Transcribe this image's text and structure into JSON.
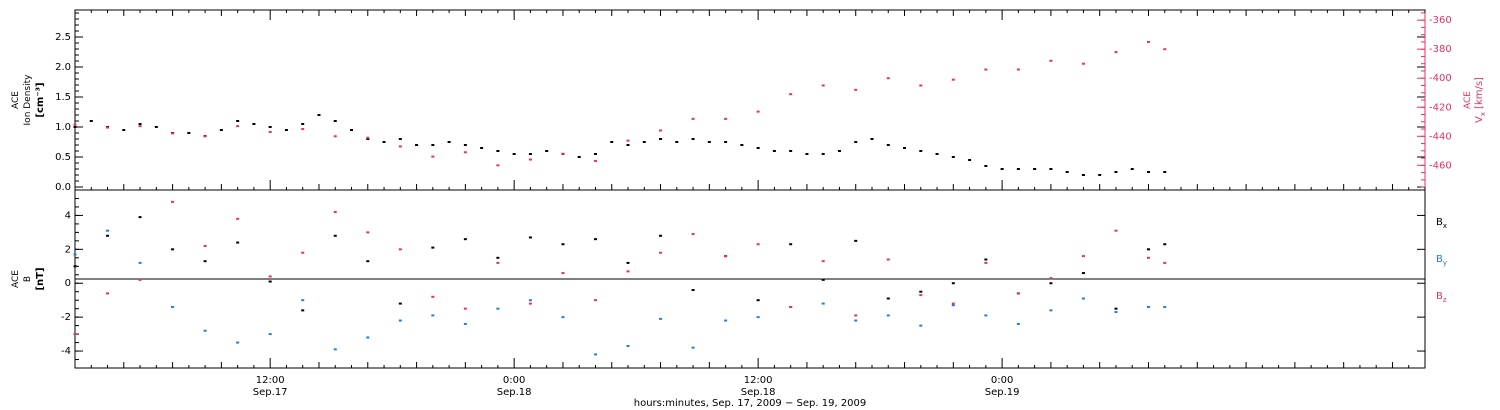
{
  "chart_data": [
    {
      "type": "scatter",
      "panel": "top",
      "ylabel_lines": [
        "ACE",
        "Ion Density",
        "[cm⁻³]"
      ],
      "y2label_lines": [
        "ACE",
        "V",
        "x",
        "[km/s]"
      ],
      "ylim": [
        -0.05,
        2.95
      ],
      "y2lim": [
        -477,
        -353
      ],
      "yticks": [
        0.0,
        0.5,
        1.0,
        1.5,
        2.0,
        2.5
      ],
      "ytick_labels": [
        "0.0",
        "0.5",
        "1.0",
        "1.5",
        "2.0",
        "2.5"
      ],
      "y2ticks": [
        -460,
        -440,
        -420,
        -400,
        -380,
        -360
      ],
      "y2tick_labels": [
        "-460",
        "-440",
        "-420",
        "-400",
        "-380",
        "-360"
      ],
      "series": [
        {
          "axis": "left",
          "color": "#000000",
          "x": [
            0,
            1,
            2,
            3,
            4,
            5,
            6,
            7,
            8,
            9,
            10,
            11,
            12,
            13,
            14,
            15,
            16,
            17,
            18,
            19,
            20,
            21,
            22,
            23,
            24,
            25,
            26,
            27,
            28,
            29,
            30,
            31,
            32,
            33,
            34,
            35,
            36,
            37,
            38,
            39,
            40,
            41,
            42,
            43,
            44,
            45,
            46,
            47,
            48,
            49,
            50,
            51,
            52,
            53,
            54,
            55,
            56,
            57,
            58,
            59,
            60,
            61,
            62,
            63,
            64,
            65,
            66,
            67
          ],
          "y": [
            1.0,
            1.1,
            1.0,
            0.95,
            1.05,
            1.0,
            0.9,
            0.9,
            0.85,
            0.95,
            1.1,
            1.05,
            1.0,
            0.95,
            1.05,
            1.2,
            1.1,
            0.95,
            0.8,
            0.75,
            0.8,
            0.7,
            0.7,
            0.75,
            0.7,
            0.65,
            0.6,
            0.55,
            0.55,
            0.6,
            0.55,
            0.5,
            0.55,
            0.75,
            0.7,
            0.75,
            0.8,
            0.75,
            0.8,
            0.75,
            0.75,
            0.7,
            0.65,
            0.6,
            0.6,
            0.55,
            0.55,
            0.6,
            0.75,
            0.8,
            0.7,
            0.65,
            0.6,
            0.55,
            0.5,
            0.45,
            0.35,
            0.3,
            0.3,
            0.3,
            0.3,
            0.25,
            0.2,
            0.2,
            0.25,
            0.3,
            0.25,
            0.25
          ]
        },
        {
          "axis": "right",
          "color": "#e8315f",
          "x": [
            0,
            2,
            4,
            6,
            8,
            10,
            12,
            14,
            16,
            18,
            20,
            22,
            24,
            26,
            28,
            30,
            32,
            34,
            36,
            38,
            40,
            42,
            44,
            46,
            48,
            50,
            52,
            54,
            56,
            58,
            60,
            62,
            64,
            66,
            67
          ],
          "y": [
            -432,
            -434,
            -433,
            -438,
            -440,
            -433,
            -437,
            -435,
            -440,
            -441,
            -447,
            -454,
            -451,
            -460,
            -456,
            -452,
            -457,
            -443,
            -436,
            -428,
            -428,
            -423,
            -411,
            -405,
            -408,
            -400,
            -405,
            -401,
            -394,
            -394,
            -388,
            -390,
            -382,
            -375,
            -380
          ]
        }
      ]
    },
    {
      "type": "scatter",
      "panel": "bottom",
      "ylabel_lines": [
        "ACE",
        "B",
        "[nT]"
      ],
      "ylim": [
        -5.0,
        5.5
      ],
      "yticks": [
        -4,
        -2,
        0,
        2,
        4
      ],
      "ytick_labels": [
        "-4",
        "-2",
        "0",
        "2",
        "4"
      ],
      "series": [
        {
          "name": "B",
          "subscript": "x",
          "color": "#000000",
          "x": [
            0,
            2,
            4,
            6,
            8,
            10,
            12,
            14,
            16,
            18,
            20,
            22,
            24,
            26,
            28,
            30,
            32,
            34,
            36,
            38,
            40,
            42,
            44,
            46,
            48,
            50,
            52,
            54,
            56,
            58,
            60,
            62,
            64,
            66,
            67
          ],
          "y": [
            1.0,
            2.8,
            3.9,
            2.0,
            1.3,
            2.4,
            0.1,
            -1.6,
            2.8,
            1.3,
            -1.2,
            2.1,
            2.6,
            1.5,
            2.7,
            2.3,
            2.6,
            1.2,
            2.8,
            -0.4,
            1.6,
            -1.0,
            2.3,
            0.2,
            2.5,
            -0.9,
            -0.5,
            0.0,
            1.4,
            -0.6,
            0.0,
            0.6,
            -1.5,
            2.0,
            2.3
          ]
        },
        {
          "name": "B",
          "subscript": "y",
          "color": "#1f7fd6",
          "x": [
            0,
            2,
            4,
            6,
            8,
            10,
            12,
            14,
            16,
            18,
            20,
            22,
            24,
            26,
            28,
            30,
            32,
            34,
            36,
            38,
            40,
            42,
            44,
            46,
            48,
            50,
            52,
            54,
            56,
            58,
            60,
            62,
            64,
            66,
            67
          ],
          "y": [
            1.7,
            3.1,
            1.2,
            -1.4,
            -2.8,
            -3.5,
            -3.0,
            -1.0,
            -3.9,
            -3.2,
            -2.2,
            -1.9,
            -2.4,
            -1.5,
            -1.0,
            -2.0,
            -4.2,
            -3.7,
            -2.1,
            -3.8,
            -2.2,
            -2.0,
            -1.4,
            -1.2,
            -2.2,
            -1.9,
            -2.5,
            -1.3,
            -1.9,
            -2.4,
            -1.6,
            -0.9,
            -1.7,
            -1.4,
            -1.4
          ]
        },
        {
          "name": "B",
          "subscript": "z",
          "color": "#e8315f",
          "x": [
            0,
            2,
            4,
            6,
            8,
            10,
            12,
            14,
            16,
            18,
            20,
            22,
            24,
            26,
            28,
            30,
            32,
            34,
            36,
            38,
            40,
            42,
            44,
            46,
            48,
            50,
            52,
            54,
            56,
            58,
            60,
            62,
            64,
            66,
            67
          ],
          "y": [
            -3.0,
            -0.6,
            0.2,
            4.8,
            2.2,
            3.8,
            0.4,
            1.8,
            4.2,
            3.0,
            2.0,
            -0.8,
            -1.5,
            1.2,
            -1.2,
            0.6,
            -1.0,
            0.7,
            1.8,
            2.9,
            1.6,
            2.3,
            -1.4,
            1.3,
            -1.9,
            1.4,
            -0.7,
            -1.2,
            1.2,
            -0.6,
            0.3,
            1.6,
            3.1,
            1.5,
            1.2
          ]
        }
      ]
    }
  ],
  "x_axis": {
    "range": [
      0,
      83
    ],
    "major_ticks": [
      {
        "hour": 12,
        "time": "12:00",
        "date": "Sep.17"
      },
      {
        "hour": 27,
        "time": "0:00",
        "date": "Sep.18"
      },
      {
        "hour": 42,
        "time": "12:00",
        "date": "Sep.18"
      },
      {
        "hour": 57,
        "time": "0:00",
        "date": "Sep.19"
      }
    ],
    "xlabel": "hours:minutes, Sep. 17, 2009 − Sep. 19, 2009"
  },
  "legend": {
    "placement": "right of bottom panel",
    "items": [
      {
        "base": "B",
        "sub": "x",
        "color": "#000000"
      },
      {
        "base": "B",
        "sub": "y",
        "color": "#1f7fd6"
      },
      {
        "base": "B",
        "sub": "z",
        "color": "#e8315f"
      }
    ]
  },
  "colors": {
    "black_series": "#000000",
    "blue_series": "#1f7fd6",
    "pink_series": "#e8315f",
    "right_axis": "#e8315f"
  }
}
